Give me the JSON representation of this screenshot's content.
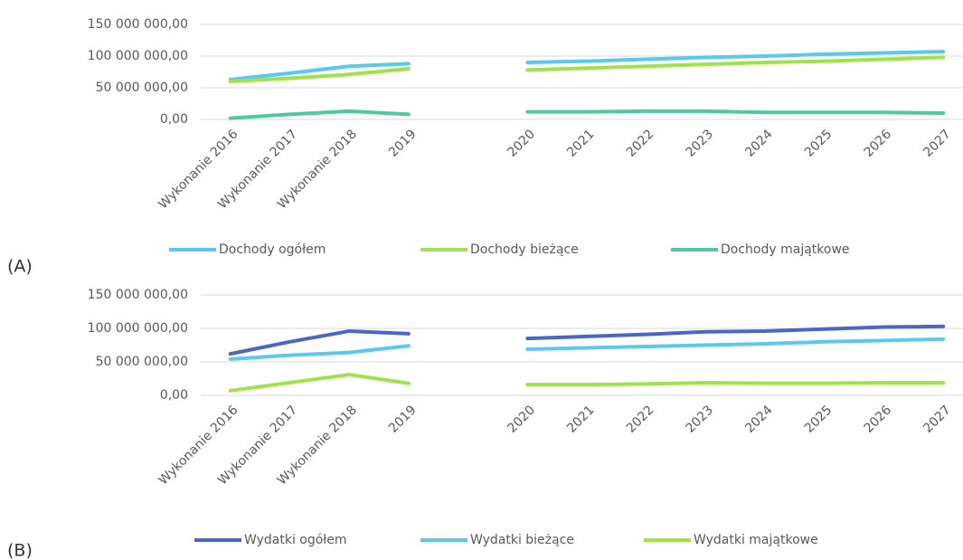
{
  "chart_data": [
    {
      "type": "line",
      "panel_label": "(A)",
      "categories": [
        "Wykonanie 2016",
        "Wykonanie 2017",
        "Wykonanie 2018",
        "2019",
        null,
        "2020",
        "2021",
        "2022",
        "2023",
        "2024",
        "2025",
        "2026",
        "2027"
      ],
      "series": [
        {
          "name": "Dochody ogółem",
          "color": "#5bc8f0",
          "values": [
            63000000,
            73000000,
            84000000,
            88000000,
            null,
            90000000,
            92000000,
            95000000,
            98000000,
            100000000,
            103000000,
            105000000,
            107000000
          ]
        },
        {
          "name": "Dochody bieżące",
          "color": "#9ee34a",
          "values": [
            60000000,
            65000000,
            71000000,
            80000000,
            null,
            78000000,
            81000000,
            84000000,
            87000000,
            90000000,
            92000000,
            95000000,
            98000000
          ]
        },
        {
          "name": "Dochody majątkowe",
          "color": "#4fc9a2",
          "values": [
            2000000,
            8000000,
            13000000,
            8000000,
            null,
            12000000,
            12000000,
            13000000,
            13000000,
            11000000,
            11000000,
            11000000,
            10000000
          ]
        }
      ],
      "ylim": [
        0,
        150000000
      ],
      "yticks": [
        {
          "value": 0,
          "label": "0,00"
        },
        {
          "value": 50000000,
          "label": "50 000 000,00"
        },
        {
          "value": 100000000,
          "label": "100 000 000,00"
        },
        {
          "value": 150000000,
          "label": "150 000 000,00"
        }
      ],
      "grid": true,
      "legend": "bottom"
    },
    {
      "type": "line",
      "panel_label": "(B)",
      "categories": [
        "Wykonanie 2016",
        "Wykonanie 2017",
        "Wykonanie 2018",
        "2019",
        null,
        "2020",
        "2021",
        "2022",
        "2023",
        "2024",
        "2025",
        "2026",
        "2027"
      ],
      "series": [
        {
          "name": "Wydatki ogółem",
          "color": "#4a67c8",
          "values": [
            62000000,
            80000000,
            96000000,
            92000000,
            null,
            85000000,
            88000000,
            91000000,
            95000000,
            96000000,
            99000000,
            102000000,
            103000000
          ]
        },
        {
          "name": "Wydatki bieżące",
          "color": "#5bc8f0",
          "values": [
            54000000,
            60000000,
            64000000,
            74000000,
            null,
            69000000,
            71000000,
            73000000,
            75000000,
            77000000,
            80000000,
            82000000,
            84000000
          ]
        },
        {
          "name": "Wydatki majątkowe",
          "color": "#9ee34a",
          "values": [
            7000000,
            19000000,
            31000000,
            18000000,
            null,
            16000000,
            16000000,
            17000000,
            19000000,
            18000000,
            18000000,
            19000000,
            19000000
          ]
        }
      ],
      "ylim": [
        0,
        150000000
      ],
      "yticks": [
        {
          "value": 0,
          "label": "0,00"
        },
        {
          "value": 50000000,
          "label": "50 000 000,00"
        },
        {
          "value": 100000000,
          "label": "100 000 000,00"
        },
        {
          "value": 150000000,
          "label": "150 000 000,00"
        }
      ],
      "grid": true,
      "legend": "bottom"
    }
  ]
}
